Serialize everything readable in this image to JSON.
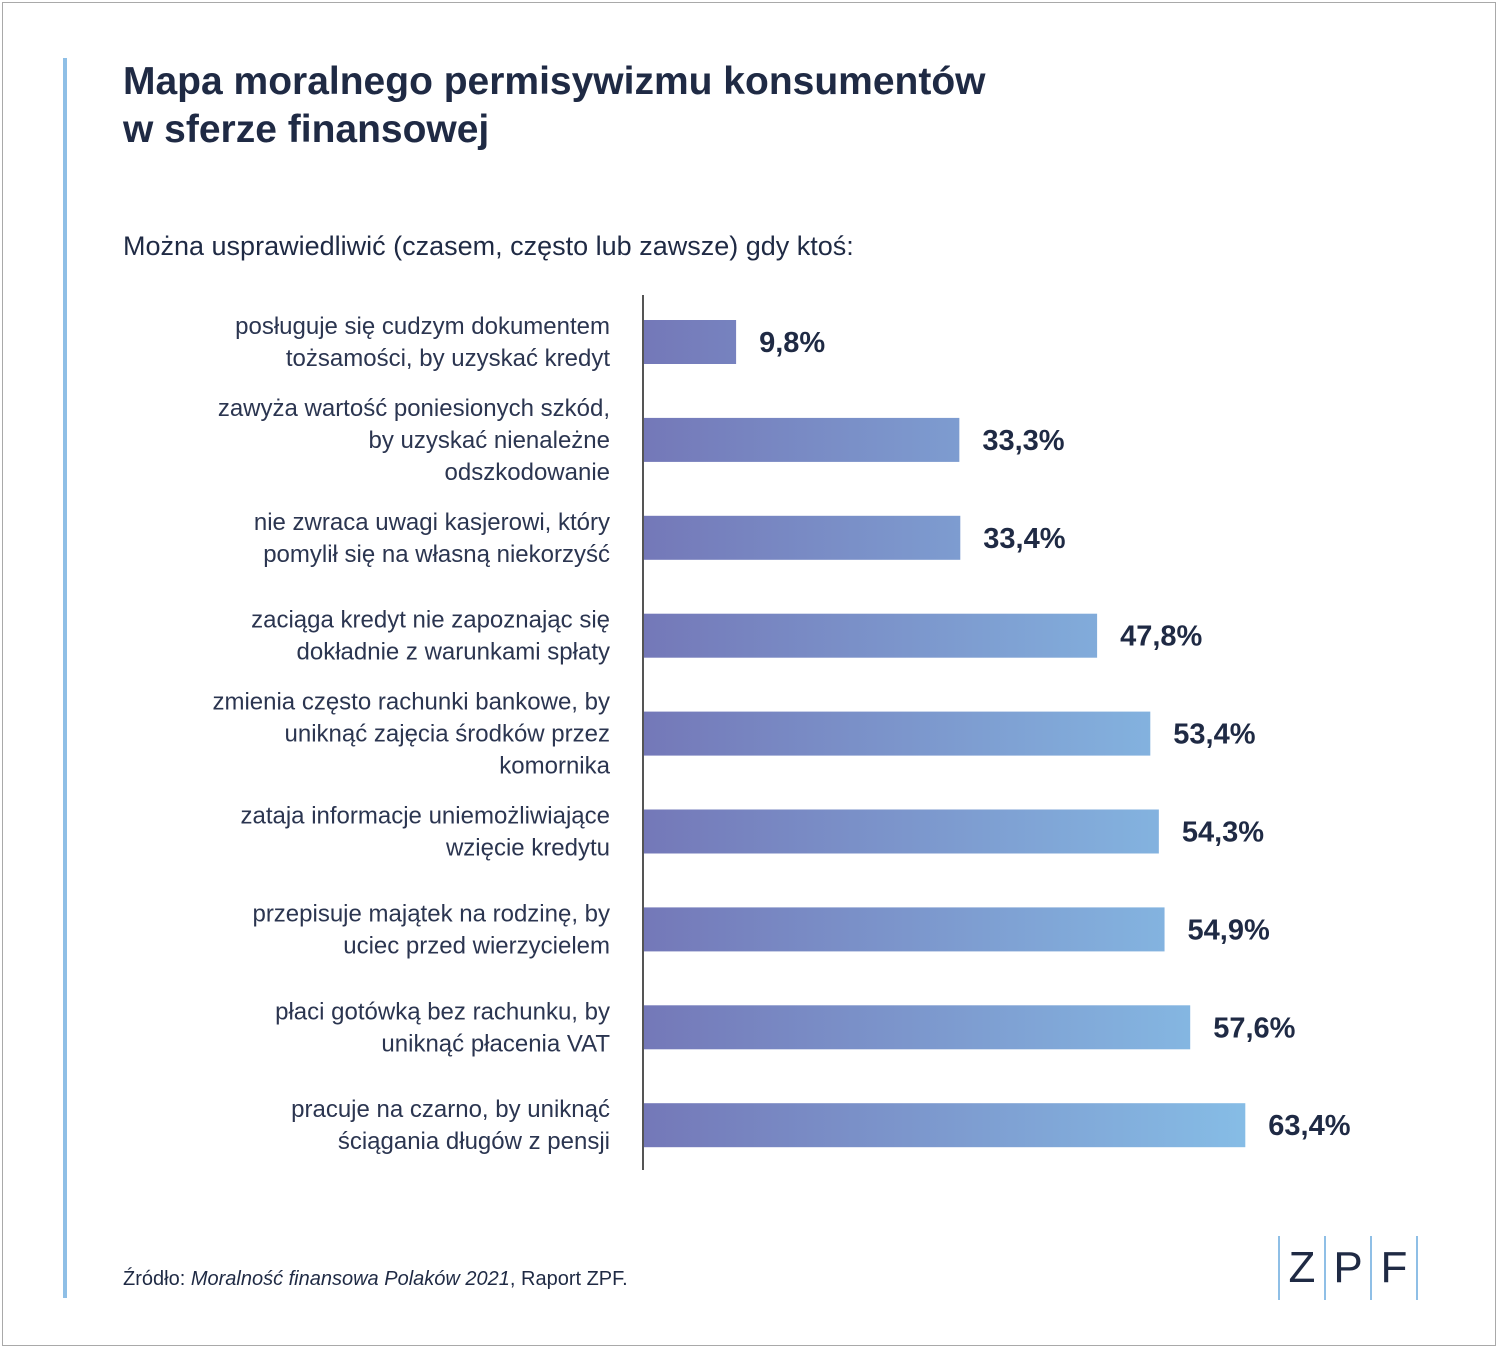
{
  "title": "Mapa moralnego permisywizmu konsumentów\nw sferze finansowej",
  "subtitle": "Można usprawiedliwić (czasem, często lub zawsze) gdy ktoś:",
  "chart_data": {
    "type": "bar",
    "orientation": "horizontal",
    "categories": [
      "posługuje się cudzym dokumentem tożsamości, by uzyskać kredyt",
      "zawyża wartość poniesionych szkód, by uzyskać nienależne odszkodowanie",
      "nie zwraca uwagi kasjerowi, który pomylił się na własną niekorzyść",
      "zaciąga kredyt nie zapoznając się dokładnie z warunkami spłaty",
      "zmienia często rachunki bankowe, by uniknąć zajęcia środków przez komornika",
      "zataja informacje uniemożliwiające wzięcie kredytu",
      "przepisuje majątek na rodzinę, by uciec przed wierzycielem",
      "płaci gotówką bez rachunku, by uniknąć płacenia VAT",
      "pracuje na czarno, by uniknąć ściągania długów z pensji"
    ],
    "category_lines": [
      [
        "posługuje się cudzym dokumentem",
        "tożsamości, by uzyskać kredyt"
      ],
      [
        "zawyża wartość poniesionych szkód,",
        "by uzyskać nienależne",
        "odszkodowanie"
      ],
      [
        "nie zwraca uwagi kasjerowi, który",
        "pomylił się na własną niekorzyść"
      ],
      [
        "zaciąga kredyt nie zapoznając się",
        "dokładnie z warunkami spłaty"
      ],
      [
        "zmienia często rachunki bankowe, by",
        "uniknąć zajęcia środków przez",
        "komornika"
      ],
      [
        "zataja informacje uniemożliwiające",
        "wzięcie kredytu"
      ],
      [
        "przepisuje majątek na rodzinę, by",
        "uciec przed wierzycielem"
      ],
      [
        "płaci gotówką bez rachunku, by",
        "uniknąć płacenia VAT"
      ],
      [
        "pracuje na czarno, by uniknąć",
        "ściągania długów z pensji"
      ]
    ],
    "values": [
      9.8,
      33.3,
      33.4,
      47.8,
      53.4,
      54.3,
      54.9,
      57.6,
      63.4
    ],
    "value_labels": [
      "9,8%",
      "33,3%",
      "33,4%",
      "47,8%",
      "53,4%",
      "54,3%",
      "54,9%",
      "57,6%",
      "63,4%"
    ],
    "xlim": [
      0,
      100
    ],
    "grid": false,
    "legend": "none",
    "colors": {
      "bar_start": "#7478b8",
      "bar_end": "#86bde6",
      "axis": "#555555"
    }
  },
  "source": {
    "prefix": "Źródło: ",
    "title": "Moralność finansowa Polaków 2021",
    "suffix": ", Raport ZPF."
  },
  "logo": {
    "letters": [
      "Z",
      "P",
      "F"
    ]
  }
}
